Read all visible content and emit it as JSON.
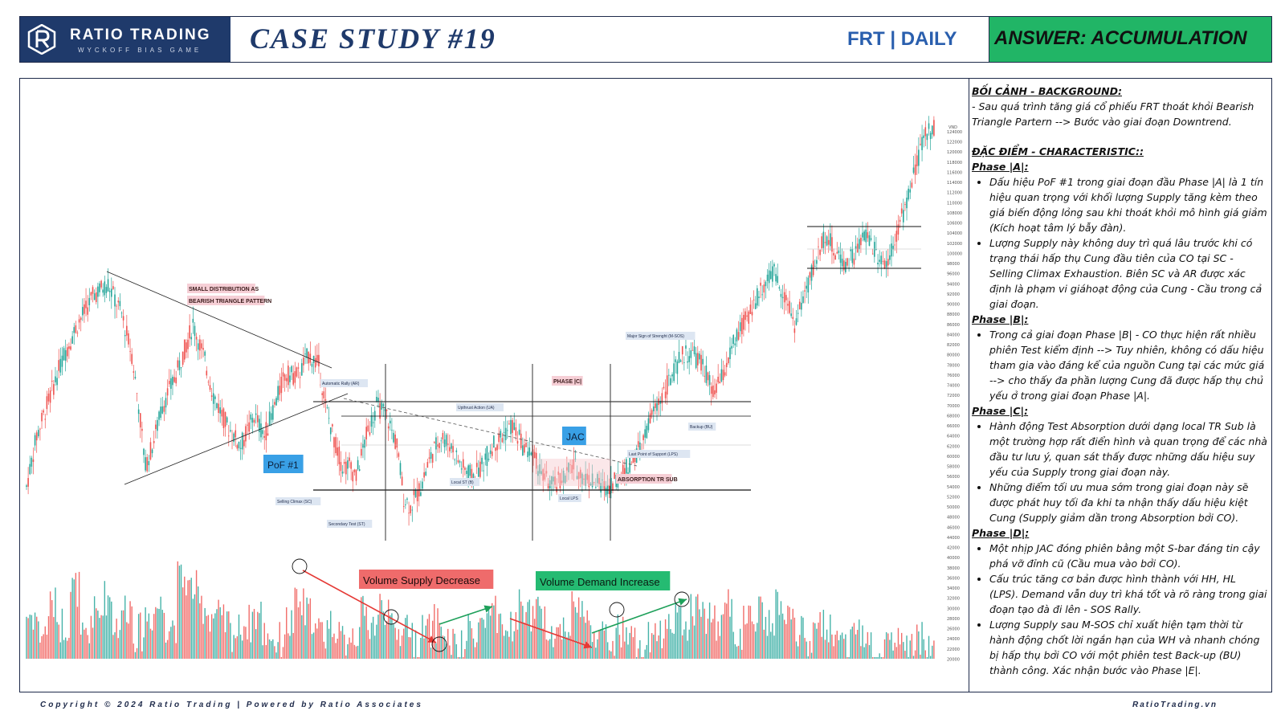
{
  "header": {
    "brand_name": "RATIO TRADING",
    "brand_sub": "WYCKOFF BIAS GAME",
    "case_title": "CASE STUDY #19",
    "ticker": "FRT | DAILY",
    "answer": "ANSWER: ACCUMULATION"
  },
  "notes": {
    "background_title": "BỐI CẢNH - BACKGROUND:",
    "background_text": " - Sau quá trình tăng giá cổ phiếu FRT thoát khỏi Bearish Triangle Partern --> Bước vào giai đoạn Downtrend.",
    "char_title": "ĐẶC ĐIỂM -  CHARACTERISTIC::",
    "phases": [
      {
        "title": "Phase |A|:",
        "items": [
          "Dấu hiệu PoF #1 trong giai đoạn đầu Phase |A| là 1 tín hiệu quan trọng với khối lượng Supply tăng kèm theo giá biến động lỏng sau khi thoát khỏi mô hình giá giảm (Kích hoạt tâm lý bẫy đàn).",
          "Lượng Supply này không duy trì quá lâu  trước khi có trạng thái hấp thụ Cung đầu tiên của CO tại SC - Selling Climax Exhaustion. Biên SC và AR được xác định là phạm vi giáhoạt động của Cung - Cầu trong cả giai đoạn."
        ]
      },
      {
        "title": "Phase |B|:",
        "items": [
          "Trong cả giai đoạn Phase |B| - CO thực hiện rất nhiều phiên Test kiểm định --> Tuy nhiên, không có dấu hiệu tham gia vào đáng kể của nguồn Cung tại các mức giá --> cho thấy đa phần lượng Cung đã được hấp thụ chủ yếu ở trong giai đoạn Phase |A|."
        ]
      },
      {
        "title": "Phase |C|:",
        "items": [
          "Hành động Test Absorption dưới dạng local TR Sub là một trường hợp rất điển hình và quan trọng để các nhà đầu tư lưu ý, quan sát thấy được những dấu hiệu suy yếu của Supply trong giai đoạn này.",
          "Những điểm tối ưu mua sớm trong giai đoạn này sẽ được phát huy tối đa khi ta nhận thấy dấu hiệu kiệt Cung (Supply giảm dần trong Absorption bởi CO)."
        ]
      },
      {
        "title": "Phase |D|:",
        "items": [
          "Một nhịp JAC đóng phiên bằng một S-bar đáng tin cậy phá vỡ đỉnh cũ (Cầu mua vào bởi CO).",
          "Cấu trúc tăng cơ bản được hình thành với HH, HL (LPS). Demand vẫn duy trì khá tốt và rõ ràng trong giai đoạn tạo đà đi lên - SOS Rally.",
          "Lượng Supply sau M-SOS chỉ xuất hiện tạm thời từ hành động chốt lời ngắn hạn của WH và nhanh chóng bị hấp thụ bởi CO với một phiên test Back-up (BU) thành công. Xác nhận bước vào Phase |E|."
        ]
      }
    ]
  },
  "footer": {
    "left": "Copyright © 2024 Ratio Trading | Powered by Ratio Associates",
    "right": "RatioTrading.vn"
  },
  "chart_data": {
    "type": "candlestick",
    "axis_currency": "VND",
    "ylim": [
      18000,
      130000
    ],
    "price_ticks": [
      124000,
      122000,
      120000,
      118000,
      116000,
      114000,
      112000,
      110000,
      108000,
      106000,
      104000,
      102000,
      100000,
      98000,
      96000,
      94000,
      92000,
      90000,
      88000,
      86000,
      84000,
      82000,
      80000,
      78000,
      76000,
      74000,
      72000,
      70000,
      68000,
      66000,
      64000,
      62000,
      60000,
      58000,
      56000,
      54000,
      52000,
      50000,
      48000,
      46000,
      44000,
      42000,
      40000,
      38000,
      36000,
      34000,
      32000,
      30000,
      28000,
      26000,
      24000,
      22000,
      20000
    ],
    "price_path": [
      [
        0,
        54000
      ],
      [
        6,
        64000
      ],
      [
        14,
        72000
      ],
      [
        22,
        80000
      ],
      [
        30,
        86000
      ],
      [
        40,
        92000
      ],
      [
        48,
        94000
      ],
      [
        56,
        88000
      ],
      [
        62,
        80000
      ],
      [
        66,
        70000
      ],
      [
        70,
        58000
      ],
      [
        74,
        62000
      ],
      [
        80,
        70000
      ],
      [
        88,
        76000
      ],
      [
        94,
        82000
      ],
      [
        98,
        86000
      ],
      [
        104,
        80000
      ],
      [
        110,
        72000
      ],
      [
        118,
        66000
      ],
      [
        126,
        62000
      ],
      [
        134,
        68000
      ],
      [
        140,
        64000
      ],
      [
        146,
        70000
      ],
      [
        152,
        76000
      ],
      [
        160,
        76000
      ],
      [
        166,
        80000
      ],
      [
        172,
        78000
      ],
      [
        176,
        70000
      ],
      [
        182,
        62000
      ],
      [
        186,
        58000
      ],
      [
        190,
        58000
      ],
      [
        194,
        56000
      ],
      [
        200,
        64000
      ],
      [
        206,
        70000
      ],
      [
        212,
        68000
      ],
      [
        218,
        62000
      ],
      [
        222,
        52000
      ],
      [
        226,
        50000
      ],
      [
        232,
        54000
      ],
      [
        238,
        60000
      ],
      [
        244,
        64000
      ],
      [
        250,
        62000
      ],
      [
        256,
        58000
      ],
      [
        262,
        56000
      ],
      [
        268,
        58000
      ],
      [
        274,
        62000
      ],
      [
        280,
        64000
      ],
      [
        286,
        66000
      ],
      [
        292,
        62000
      ],
      [
        298,
        60000
      ],
      [
        304,
        56000
      ],
      [
        310,
        54000
      ],
      [
        316,
        56000
      ],
      [
        322,
        58000
      ],
      [
        328,
        56000
      ],
      [
        334,
        55000
      ],
      [
        340,
        54000
      ],
      [
        346,
        55000
      ],
      [
        352,
        57000
      ],
      [
        358,
        60000
      ],
      [
        362,
        62000
      ],
      [
        368,
        68000
      ],
      [
        374,
        72000
      ],
      [
        380,
        76000
      ],
      [
        386,
        80000
      ],
      [
        392,
        80000
      ],
      [
        398,
        78000
      ],
      [
        404,
        72000
      ],
      [
        410,
        76000
      ],
      [
        416,
        82000
      ],
      [
        422,
        86000
      ],
      [
        428,
        90000
      ],
      [
        434,
        94000
      ],
      [
        440,
        96000
      ],
      [
        446,
        92000
      ],
      [
        452,
        86000
      ],
      [
        458,
        92000
      ],
      [
        464,
        98000
      ],
      [
        470,
        104000
      ],
      [
        476,
        100000
      ],
      [
        482,
        98000
      ],
      [
        488,
        100000
      ],
      [
        494,
        104000
      ],
      [
        500,
        100000
      ],
      [
        506,
        98000
      ],
      [
        512,
        104000
      ],
      [
        518,
        110000
      ],
      [
        524,
        118000
      ],
      [
        530,
        124000
      ],
      [
        534,
        125000
      ]
    ],
    "volume_base": [
      28000,
      24000,
      30000,
      26000,
      34000,
      22000,
      28000,
      32000,
      26000,
      30000,
      24000,
      28000,
      30000,
      26000,
      36000,
      34000,
      30000,
      28000,
      26000,
      24000,
      26000,
      28000,
      24000,
      22000,
      26000,
      30000,
      28000,
      24000,
      26000,
      22000,
      24000,
      28000,
      26000,
      30000,
      24000,
      26000,
      22000,
      24000,
      26000,
      22000,
      20000,
      24000,
      26000,
      28000,
      24000,
      26000,
      30000,
      28000,
      26000,
      24000,
      26000,
      30000,
      26000,
      24000,
      22000,
      24000,
      22000,
      20000,
      22000,
      24000,
      28000,
      26000,
      30000,
      28000,
      26000,
      30000,
      24000,
      26000,
      28000,
      26000,
      30000,
      26000,
      24000,
      22000,
      26000,
      24000,
      22000,
      24000,
      22000,
      20000,
      22000,
      22000,
      20000,
      22000,
      20000
    ],
    "annotations": [
      {
        "text": "SMALL DISTRIBUTION AS",
        "style": "pink"
      },
      {
        "text": "BEARISH TRIANGLE PATTERN",
        "style": "pink"
      },
      {
        "text": "Automatic Rally (AR)",
        "style": "blue"
      },
      {
        "text": "Upthrust Action (UA)",
        "style": "blue"
      },
      {
        "text": "Local ST (B)",
        "style": "blue"
      },
      {
        "text": "Selling Climax (SC)",
        "style": "blue"
      },
      {
        "text": "Secondary Test (ST)",
        "style": "blue"
      },
      {
        "text": "Local LPS",
        "style": "blue"
      },
      {
        "text": "Last Point of Support (LPS)",
        "style": "blue"
      },
      {
        "text": "Major Sign of Strenght (M-SOS)",
        "style": "blue"
      },
      {
        "text": "Backup (BU)",
        "style": "blue"
      },
      {
        "text": "PHASE |C|",
        "style": "pink"
      },
      {
        "text": "ABSORPTION TR SUB",
        "style": "pink"
      },
      {
        "text": "PoF #1",
        "style": "bigblue"
      },
      {
        "text": "JAC",
        "style": "bigblue"
      },
      {
        "text": "Volume Supply Decrease",
        "style": "red"
      },
      {
        "text": "Volume Demand Increase",
        "style": "green"
      }
    ],
    "colors": {
      "up": "#26a69a",
      "down": "#ef5350",
      "arrow_red": "#e53935",
      "arrow_green": "#1ea05a"
    }
  }
}
